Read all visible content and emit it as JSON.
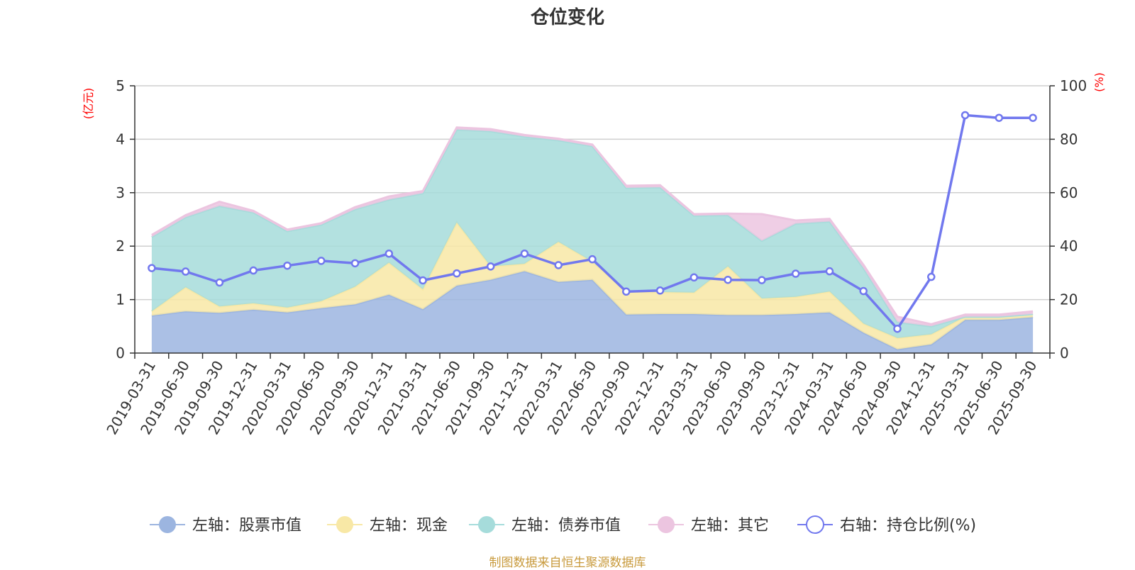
{
  "chart_data": {
    "type": "area",
    "title": "仓位变化",
    "left_unit": "(亿元)",
    "right_unit": "(%)",
    "categories": [
      "2019-03-31",
      "2019-06-30",
      "2019-09-30",
      "2019-12-31",
      "2020-03-31",
      "2020-06-30",
      "2020-09-30",
      "2020-12-31",
      "2021-03-31",
      "2021-06-30",
      "2021-09-30",
      "2021-12-31",
      "2022-03-31",
      "2022-06-30",
      "2022-09-30",
      "2022-12-31",
      "2023-03-31",
      "2023-06-30",
      "2023-09-30",
      "2023-12-31",
      "2024-03-31",
      "2024-06-30",
      "2024-09-30",
      "2024-12-31",
      "2025-03-31",
      "2025-06-30",
      "2025-09-30"
    ],
    "left_ylim": [
      0,
      5
    ],
    "left_ticks": [
      "0",
      "1",
      "2",
      "3",
      "4",
      "5"
    ],
    "right_ylim": [
      0,
      100
    ],
    "right_ticks": [
      "0",
      "20",
      "40",
      "60",
      "80",
      "100"
    ],
    "series": [
      {
        "name": "左轴：股票市值",
        "axis": "left",
        "stack": true,
        "color": "#9cb5e0",
        "values": [
          0.7,
          0.78,
          0.75,
          0.81,
          0.76,
          0.84,
          0.91,
          1.09,
          0.82,
          1.26,
          1.37,
          1.53,
          1.33,
          1.37,
          0.72,
          0.73,
          0.73,
          0.71,
          0.71,
          0.73,
          0.76,
          0.38,
          0.07,
          0.16,
          0.62,
          0.62,
          0.67
        ]
      },
      {
        "name": "左轴：现金",
        "axis": "left",
        "stack": true,
        "color": "#f8e8a6",
        "values": [
          0.08,
          0.45,
          0.12,
          0.12,
          0.09,
          0.13,
          0.33,
          0.6,
          0.37,
          1.18,
          0.25,
          0.14,
          0.75,
          0.34,
          0.43,
          0.41,
          0.4,
          0.91,
          0.31,
          0.32,
          0.39,
          0.17,
          0.21,
          0.19,
          0.06,
          0.06,
          0.06
        ]
      },
      {
        "name": "左轴：债券市值",
        "axis": "left",
        "stack": true,
        "color": "#a6dcdb",
        "values": [
          1.39,
          1.31,
          1.88,
          1.7,
          1.43,
          1.43,
          1.45,
          1.18,
          1.8,
          1.74,
          2.53,
          2.38,
          1.9,
          2.16,
          1.94,
          1.96,
          1.44,
          0.96,
          1.08,
          1.37,
          1.31,
          1.04,
          0.3,
          0.15,
          0.0,
          0.0,
          0.0
        ]
      },
      {
        "name": "左轴：其它",
        "axis": "left",
        "stack": true,
        "color": "#ecc5e0",
        "values": [
          0.04,
          0.04,
          0.08,
          0.03,
          0.03,
          0.03,
          0.04,
          0.06,
          0.04,
          0.04,
          0.04,
          0.03,
          0.03,
          0.03,
          0.04,
          0.04,
          0.03,
          0.03,
          0.5,
          0.06,
          0.05,
          0.06,
          0.1,
          0.04,
          0.04,
          0.04,
          0.05
        ]
      },
      {
        "name": "右轴：持仓比例(%)",
        "axis": "right",
        "type": "line",
        "color": "#7178ee",
        "values": [
          31.8,
          30.5,
          26.4,
          30.9,
          32.7,
          34.5,
          33.6,
          37.2,
          27.2,
          29.8,
          32.4,
          37.2,
          32.9,
          35.1,
          23.0,
          23.4,
          28.3,
          27.4,
          27.3,
          29.7,
          30.6,
          23.2,
          9.1,
          28.5,
          89.0,
          88.0,
          88.0
        ]
      }
    ],
    "legend_position": "bottom"
  },
  "source": "制图数据来自恒生聚源数据库"
}
